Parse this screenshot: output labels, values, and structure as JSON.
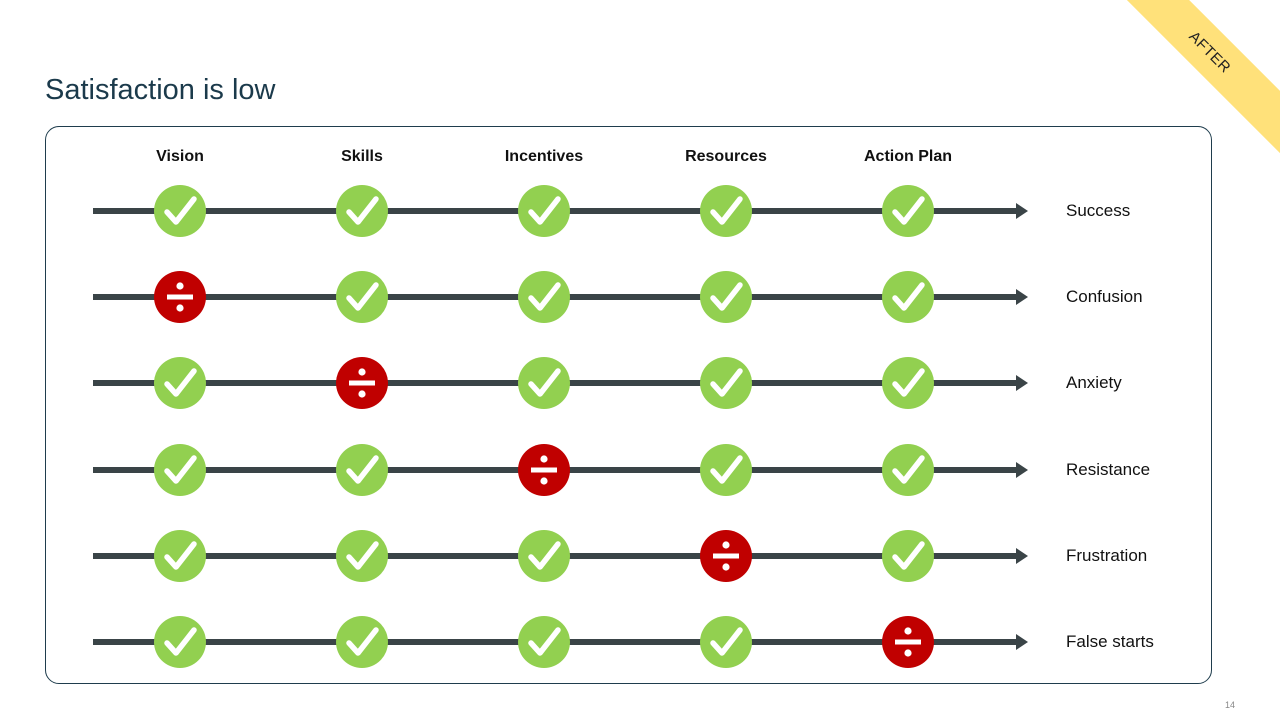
{
  "slide": {
    "title": "Satisfaction is low",
    "ribbon_label": "AFTER",
    "page_number": "14"
  },
  "columns": [
    "Vision",
    "Skills",
    "Incentives",
    "Resources",
    "Action Plan"
  ],
  "rows": [
    {
      "outcome": "Success",
      "markers": [
        "check",
        "check",
        "check",
        "check",
        "check"
      ]
    },
    {
      "outcome": "Confusion",
      "markers": [
        "divide",
        "check",
        "check",
        "check",
        "check"
      ]
    },
    {
      "outcome": "Anxiety",
      "markers": [
        "check",
        "divide",
        "check",
        "check",
        "check"
      ]
    },
    {
      "outcome": "Resistance",
      "markers": [
        "check",
        "check",
        "divide",
        "check",
        "check"
      ]
    },
    {
      "outcome": "Frustration",
      "markers": [
        "check",
        "check",
        "check",
        "divide",
        "check"
      ]
    },
    {
      "outcome": "False starts",
      "markers": [
        "check",
        "check",
        "check",
        "check",
        "divide"
      ]
    }
  ],
  "colors": {
    "check": "#92d050",
    "divide": "#c00000",
    "line": "#3a4447",
    "ribbon": "#ffe17a"
  },
  "icons": {
    "check": "check-icon",
    "divide": "divide-icon"
  }
}
